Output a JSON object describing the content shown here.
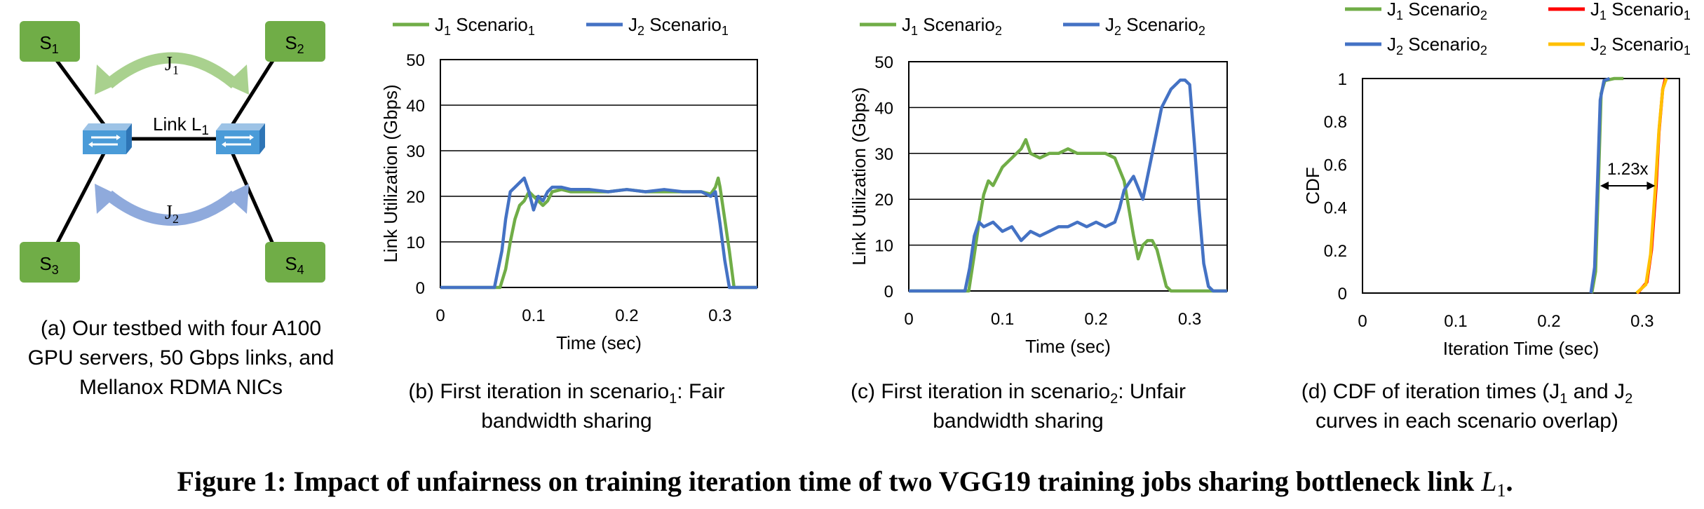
{
  "colors": {
    "green": "#70AD47",
    "blue": "#4472C4",
    "red": "#FF0000",
    "orange": "#FFC000",
    "node": "#70AD47",
    "switch": "#4A9BD8"
  },
  "testbed": {
    "nodes": [
      {
        "name": "S",
        "sub": "1"
      },
      {
        "name": "S",
        "sub": "2"
      },
      {
        "name": "S",
        "sub": "3"
      },
      {
        "name": "S",
        "sub": "4"
      }
    ],
    "j1": {
      "name": "J",
      "sub": "1"
    },
    "j2": {
      "name": "J",
      "sub": "2"
    },
    "link": {
      "name": "Link L",
      "sub": "1"
    },
    "caption": [
      "(a) Our testbed with four A100",
      "GPU servers, 50 Gbps links, and",
      "Mellanox RDMA NICs"
    ],
    "icons": [
      "network-switch-icon",
      "curved-arrow-icon"
    ]
  },
  "panel_b": {
    "caption_line1": {
      "pre": "(b) First iteration in scenario",
      "sub": "1",
      "post": ": Fair"
    },
    "caption_line2": "bandwidth sharing"
  },
  "panel_c": {
    "caption_line1": {
      "pre": "(c) First iteration in scenario",
      "sub": "2",
      "post": ": Unfair"
    },
    "caption_line2": "bandwidth sharing"
  },
  "panel_d": {
    "caption_line1": {
      "pre": "(d) CDF of iteration times (J",
      "sub1": "1",
      "mid": " and J",
      "sub2": "2"
    },
    "caption_line2": "curves in each scenario overlap)"
  },
  "figure_caption": {
    "text": "Figure 1: Impact of unfairness on training iteration time of two VGG19 training jobs sharing bottleneck link ",
    "var": "L",
    "sub": "1",
    "end": "."
  },
  "chart_data": [
    {
      "type": "line",
      "xlabel": "Time (sec)",
      "ylabel": "Link Utilization (Gbps)",
      "xlim": [
        0,
        0.34
      ],
      "ylim": [
        0,
        50
      ],
      "xticks": [
        0,
        0.1,
        0.2,
        0.3
      ],
      "xtick_labels": [
        "0",
        "0.1",
        "0.2",
        "0.3"
      ],
      "yticks": [
        0,
        10,
        20,
        30,
        40,
        50
      ],
      "ytick_labels": [
        "0",
        "10",
        "20",
        "30",
        "40",
        "50"
      ],
      "grid": "horizontal",
      "legend_position": "top",
      "series": [
        {
          "label": {
            "a": "J",
            "b": "1",
            "c": " Scenario",
            "d": "1"
          },
          "color": "green",
          "x": [
            0,
            0.064,
            0.07,
            0.075,
            0.08,
            0.085,
            0.09,
            0.095,
            0.1,
            0.105,
            0.11,
            0.115,
            0.12,
            0.13,
            0.14,
            0.15,
            0.16,
            0.18,
            0.2,
            0.22,
            0.24,
            0.26,
            0.28,
            0.29,
            0.295,
            0.298,
            0.3,
            0.305,
            0.31,
            0.315,
            0.32,
            0.34
          ],
          "y": [
            0,
            0,
            4,
            10,
            15,
            18,
            19,
            21,
            20,
            19,
            18,
            19,
            21,
            21.5,
            21,
            21,
            21,
            21,
            21.5,
            21,
            21,
            21,
            21,
            20.5,
            22,
            24,
            22,
            15,
            8,
            0,
            0,
            0
          ]
        },
        {
          "label": {
            "a": "J",
            "b": "2",
            "c": " Scenario",
            "d": "1"
          },
          "color": "blue",
          "x": [
            0,
            0.058,
            0.062,
            0.066,
            0.07,
            0.075,
            0.08,
            0.085,
            0.09,
            0.095,
            0.1,
            0.105,
            0.11,
            0.115,
            0.12,
            0.13,
            0.14,
            0.16,
            0.18,
            0.2,
            0.22,
            0.24,
            0.26,
            0.28,
            0.29,
            0.295,
            0.3,
            0.305,
            0.31,
            0.315,
            0.34
          ],
          "y": [
            0,
            0,
            4,
            8,
            15,
            21,
            22,
            23,
            24,
            21,
            17,
            20,
            19,
            21,
            22,
            22,
            21.5,
            21.5,
            21,
            21.5,
            21,
            21.5,
            21,
            21,
            20,
            21,
            14,
            6,
            0,
            0,
            0
          ]
        }
      ]
    },
    {
      "type": "line",
      "xlabel": "Time (sec)",
      "ylabel": "Link Utilization (Gbps)",
      "xlim": [
        0,
        0.34
      ],
      "ylim": [
        0,
        50
      ],
      "xticks": [
        0,
        0.1,
        0.2,
        0.3
      ],
      "xtick_labels": [
        "0",
        "0.1",
        "0.2",
        "0.3"
      ],
      "yticks": [
        0,
        10,
        20,
        30,
        40,
        50
      ],
      "ytick_labels": [
        "0",
        "10",
        "20",
        "30",
        "40",
        "50"
      ],
      "grid": "horizontal",
      "legend_position": "top",
      "series": [
        {
          "label": {
            "a": "J",
            "b": "1",
            "c": " Scenario",
            "d": "2"
          },
          "color": "green",
          "x": [
            0,
            0.064,
            0.07,
            0.075,
            0.08,
            0.085,
            0.09,
            0.1,
            0.11,
            0.12,
            0.125,
            0.13,
            0.14,
            0.15,
            0.16,
            0.17,
            0.18,
            0.19,
            0.2,
            0.21,
            0.22,
            0.23,
            0.235,
            0.24,
            0.245,
            0.25,
            0.255,
            0.26,
            0.265,
            0.27,
            0.275,
            0.28,
            0.34
          ],
          "y": [
            0,
            0,
            8,
            15,
            21,
            24,
            23,
            27,
            29,
            31,
            33,
            30,
            29,
            30,
            30,
            31,
            30,
            30,
            30,
            30,
            29,
            24,
            18,
            12,
            7,
            10,
            11,
            11,
            9,
            5,
            1,
            0,
            0
          ]
        },
        {
          "label": {
            "a": "J",
            "b": "2",
            "c": " Scenario",
            "d": "2"
          },
          "color": "blue",
          "x": [
            0,
            0.06,
            0.065,
            0.07,
            0.075,
            0.08,
            0.09,
            0.1,
            0.11,
            0.12,
            0.13,
            0.14,
            0.15,
            0.16,
            0.17,
            0.18,
            0.19,
            0.2,
            0.21,
            0.22,
            0.225,
            0.23,
            0.24,
            0.25,
            0.26,
            0.27,
            0.28,
            0.29,
            0.295,
            0.3,
            0.305,
            0.31,
            0.315,
            0.32,
            0.325,
            0.34
          ],
          "y": [
            0,
            0,
            5,
            12,
            15,
            14,
            15,
            13,
            14,
            11,
            13,
            12,
            13,
            14,
            14,
            15,
            14,
            15,
            14,
            15,
            18,
            22,
            25,
            20,
            30,
            40,
            44,
            46,
            46,
            45,
            32,
            18,
            6,
            1,
            0,
            0
          ]
        }
      ]
    },
    {
      "type": "line",
      "xlabel": "Iteration Time (sec)",
      "ylabel": "CDF",
      "xlim": [
        0,
        0.34
      ],
      "ylim": [
        0,
        1
      ],
      "xticks": [
        0,
        0.1,
        0.2,
        0.3
      ],
      "xtick_labels": [
        "0",
        "0.1",
        "0.2",
        "0.3"
      ],
      "yticks": [
        0,
        0.2,
        0.4,
        0.6,
        0.8,
        1
      ],
      "ytick_labels": [
        "0",
        "0.2",
        "0.4",
        "0.6",
        "0.8",
        "1"
      ],
      "grid": "none",
      "legend_position": "top",
      "annotation": {
        "text": "1.23x",
        "x_from": 0.255,
        "x_to": 0.314,
        "y": 0.5
      },
      "series": [
        {
          "label": {
            "a": "J",
            "b": "1",
            "c": " Scenario",
            "d": "2"
          },
          "color": "green",
          "x": [
            0.246,
            0.25,
            0.253,
            0.256,
            0.26,
            0.27,
            0.28
          ],
          "y": [
            0,
            0.1,
            0.5,
            0.93,
            0.99,
            1,
            1
          ]
        },
        {
          "label": {
            "a": "J",
            "b": "1",
            "c": " Scenario",
            "d": "1"
          },
          "color": "red",
          "x": [
            0.295,
            0.305,
            0.31,
            0.315,
            0.318,
            0.322,
            0.325
          ],
          "y": [
            0,
            0.05,
            0.2,
            0.5,
            0.75,
            0.95,
            1
          ]
        },
        {
          "label": {
            "a": "J",
            "b": "2",
            "c": " Scenario",
            "d": "2"
          },
          "color": "blue",
          "x": [
            0.245,
            0.249,
            0.252,
            0.255,
            0.259,
            0.265
          ],
          "y": [
            0,
            0.12,
            0.5,
            0.9,
            0.99,
            1
          ]
        },
        {
          "label": {
            "a": "J",
            "b": "2",
            "c": " Scenario",
            "d": "1"
          },
          "color": "orange",
          "x": [
            0.294,
            0.304,
            0.309,
            0.314,
            0.318,
            0.322,
            0.326
          ],
          "y": [
            0,
            0.04,
            0.18,
            0.48,
            0.76,
            0.95,
            1
          ]
        }
      ]
    }
  ]
}
